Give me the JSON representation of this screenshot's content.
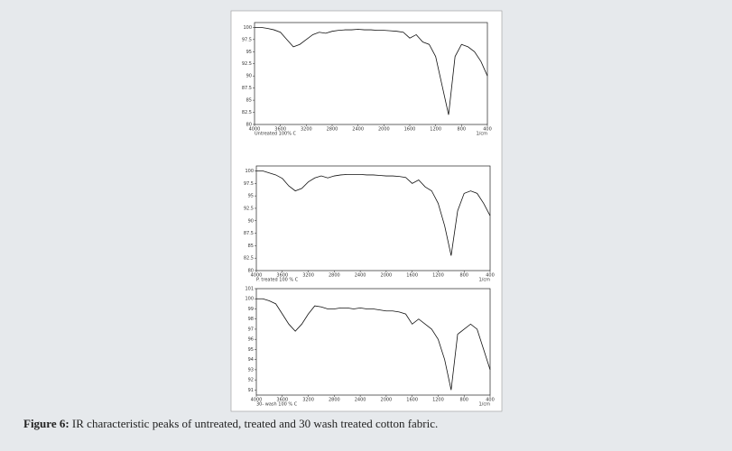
{
  "chart_data": [
    {
      "type": "line",
      "x_label": "Untreated 100% C",
      "x_unit": "1/cm",
      "x": [
        4000,
        3900,
        3800,
        3700,
        3600,
        3500,
        3400,
        3300,
        3200,
        3100,
        3000,
        2900,
        2800,
        2700,
        2600,
        2500,
        2400,
        2300,
        2200,
        2100,
        2000,
        1900,
        1800,
        1700,
        1600,
        1500,
        1400,
        1300,
        1200,
        1100,
        1000,
        900,
        800,
        700,
        600,
        500,
        400
      ],
      "series": [
        {
          "color": "#111111",
          "values": [
            100,
            100,
            99.8,
            99.5,
            99,
            97.5,
            96,
            96.5,
            97.5,
            98.5,
            99,
            98.8,
            99.2,
            99.4,
            99.5,
            99.5,
            99.6,
            99.5,
            99.5,
            99.4,
            99.4,
            99.3,
            99.2,
            99,
            97.8,
            98.5,
            97,
            96.5,
            94,
            88,
            82,
            94,
            96.5,
            96,
            95,
            93,
            90
          ]
        }
      ],
      "xlim": [
        4000,
        400
      ],
      "xticks": [
        4000,
        3600,
        3200,
        2800,
        2400,
        2000,
        1600,
        1200,
        800,
        400
      ],
      "ylim": [
        80,
        101
      ],
      "yticks": [
        100,
        97.5,
        95,
        92.5,
        90,
        87.5,
        85,
        82.5,
        80
      ]
    },
    {
      "type": "line",
      "x_label": "P. treated 100 % C",
      "x_unit": "1/cm",
      "x": [
        4000,
        3900,
        3800,
        3700,
        3600,
        3500,
        3400,
        3300,
        3200,
        3100,
        3000,
        2900,
        2800,
        2700,
        2600,
        2500,
        2400,
        2300,
        2200,
        2100,
        2000,
        1900,
        1800,
        1700,
        1600,
        1500,
        1400,
        1300,
        1200,
        1100,
        1000,
        900,
        800,
        700,
        600,
        500,
        400
      ],
      "series": [
        {
          "color": "#111111",
          "values": [
            100,
            100,
            99.6,
            99.2,
            98.5,
            97,
            96,
            96.5,
            97.8,
            98.6,
            99,
            98.6,
            99,
            99.2,
            99.3,
            99.3,
            99.3,
            99.2,
            99.2,
            99.1,
            99,
            99,
            98.9,
            98.7,
            97.5,
            98.2,
            96.8,
            96,
            93.5,
            89,
            83,
            92,
            95.5,
            96,
            95.5,
            93.5,
            91
          ]
        }
      ],
      "xlim": [
        4000,
        400
      ],
      "xticks": [
        4000,
        3600,
        3200,
        2800,
        2400,
        2000,
        1600,
        1200,
        800,
        400
      ],
      "ylim": [
        80,
        101
      ],
      "yticks": [
        100,
        97.5,
        95,
        92.5,
        90,
        87.5,
        85,
        82.5,
        80
      ]
    },
    {
      "type": "line",
      "x_label": "30- wash 100 % C",
      "x_unit": "1/cm",
      "x": [
        4000,
        3900,
        3800,
        3700,
        3600,
        3500,
        3400,
        3300,
        3200,
        3100,
        3000,
        2900,
        2800,
        2700,
        2600,
        2500,
        2400,
        2300,
        2200,
        2100,
        2000,
        1900,
        1800,
        1700,
        1600,
        1500,
        1400,
        1300,
        1200,
        1100,
        1000,
        900,
        800,
        700,
        600,
        500,
        400
      ],
      "series": [
        {
          "color": "#111111",
          "values": [
            100,
            100,
            99.8,
            99.5,
            98.5,
            97.5,
            96.8,
            97.5,
            98.5,
            99.3,
            99.2,
            99,
            99,
            99.1,
            99.1,
            99,
            99.1,
            99,
            99,
            98.9,
            98.8,
            98.8,
            98.7,
            98.5,
            97.5,
            98,
            97.5,
            97,
            96,
            94,
            91,
            96.5,
            97,
            97.5,
            97,
            95,
            93
          ]
        }
      ],
      "xlim": [
        4000,
        400
      ],
      "xticks": [
        4000,
        3600,
        3200,
        2800,
        2400,
        2000,
        1600,
        1200,
        800,
        400
      ],
      "ylim": [
        90.5,
        101
      ],
      "yticks": [
        101,
        100,
        99,
        98,
        97,
        96,
        95,
        94,
        93,
        92,
        91
      ]
    }
  ],
  "caption": {
    "label": "Figure 6:",
    "text": "IR characteristic peaks of untreated, treated and 30 wash treated cotton fabric."
  }
}
